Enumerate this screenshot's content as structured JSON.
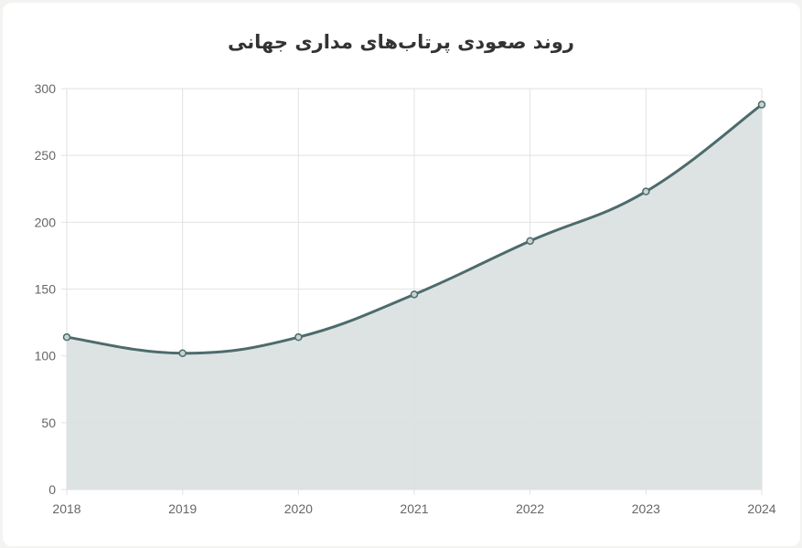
{
  "title": "روند صعودی پرتاب‌های مداری جهانی",
  "colors": {
    "line": "#4e6b6b",
    "fill": "#dbe1e1",
    "grid": "#e2e2e2",
    "axis_text": "#666666"
  },
  "chart_data": {
    "type": "area",
    "title": "روند صعودی پرتاب‌های مداری جهانی",
    "xlabel": "",
    "ylabel": "",
    "categories": [
      "2018",
      "2019",
      "2020",
      "2021",
      "2022",
      "2023",
      "2024"
    ],
    "values": [
      114,
      102,
      114,
      146,
      186,
      223,
      288
    ],
    "ylim": [
      0,
      300
    ],
    "yticks": [
      0,
      50,
      100,
      150,
      200,
      250,
      300
    ],
    "grid": true,
    "legend": "none"
  }
}
